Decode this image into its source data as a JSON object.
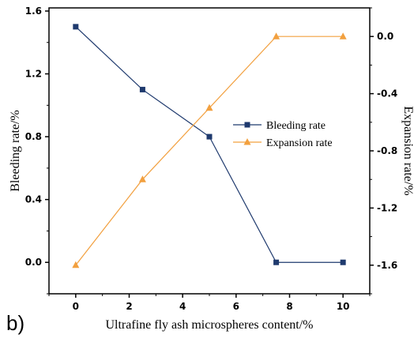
{
  "panel_label": "b)",
  "colors": {
    "series_1": "#1f3a6e",
    "series_2": "#f2a03f",
    "axes": "#000000"
  },
  "chart_data": {
    "type": "line",
    "xlabel": "Ultrafine fly ash microspheres content/%",
    "ylabel_left": "Bleeding rate/%",
    "ylabel_right": "Expansion rate/%",
    "xlim": [
      -1,
      11
    ],
    "ylim_left": [
      -0.2,
      1.62
    ],
    "ylim_right": [
      -1.8,
      0.2
    ],
    "x_ticks": [
      0,
      2,
      4,
      6,
      8,
      10
    ],
    "y_ticks_left": [
      0.0,
      0.4,
      0.8,
      1.2,
      1.6
    ],
    "y_ticks_right": [
      -1.6,
      -1.2,
      -0.8,
      -0.4,
      0.0
    ],
    "y_tick_labels_left": [
      "0.0",
      "0.4",
      "0.8",
      "1.2",
      "1.6"
    ],
    "y_tick_labels_right": [
      "-1.6",
      "-1.2",
      "-0.8",
      "-0.4",
      "0.0"
    ],
    "grid": false,
    "legend_position": "center-right",
    "series": [
      {
        "name": "Bleeding rate",
        "axis": "left",
        "marker": "square",
        "x": [
          0,
          2.5,
          5,
          7.5,
          10
        ],
        "values": [
          1.5,
          1.1,
          0.8,
          0.0,
          0.0
        ]
      },
      {
        "name": "Expansion rate",
        "axis": "right",
        "marker": "triangle",
        "x": [
          0,
          2.5,
          5,
          7.5,
          10
        ],
        "values": [
          -1.6,
          -1.0,
          -0.5,
          0.0,
          0.0
        ]
      }
    ]
  }
}
